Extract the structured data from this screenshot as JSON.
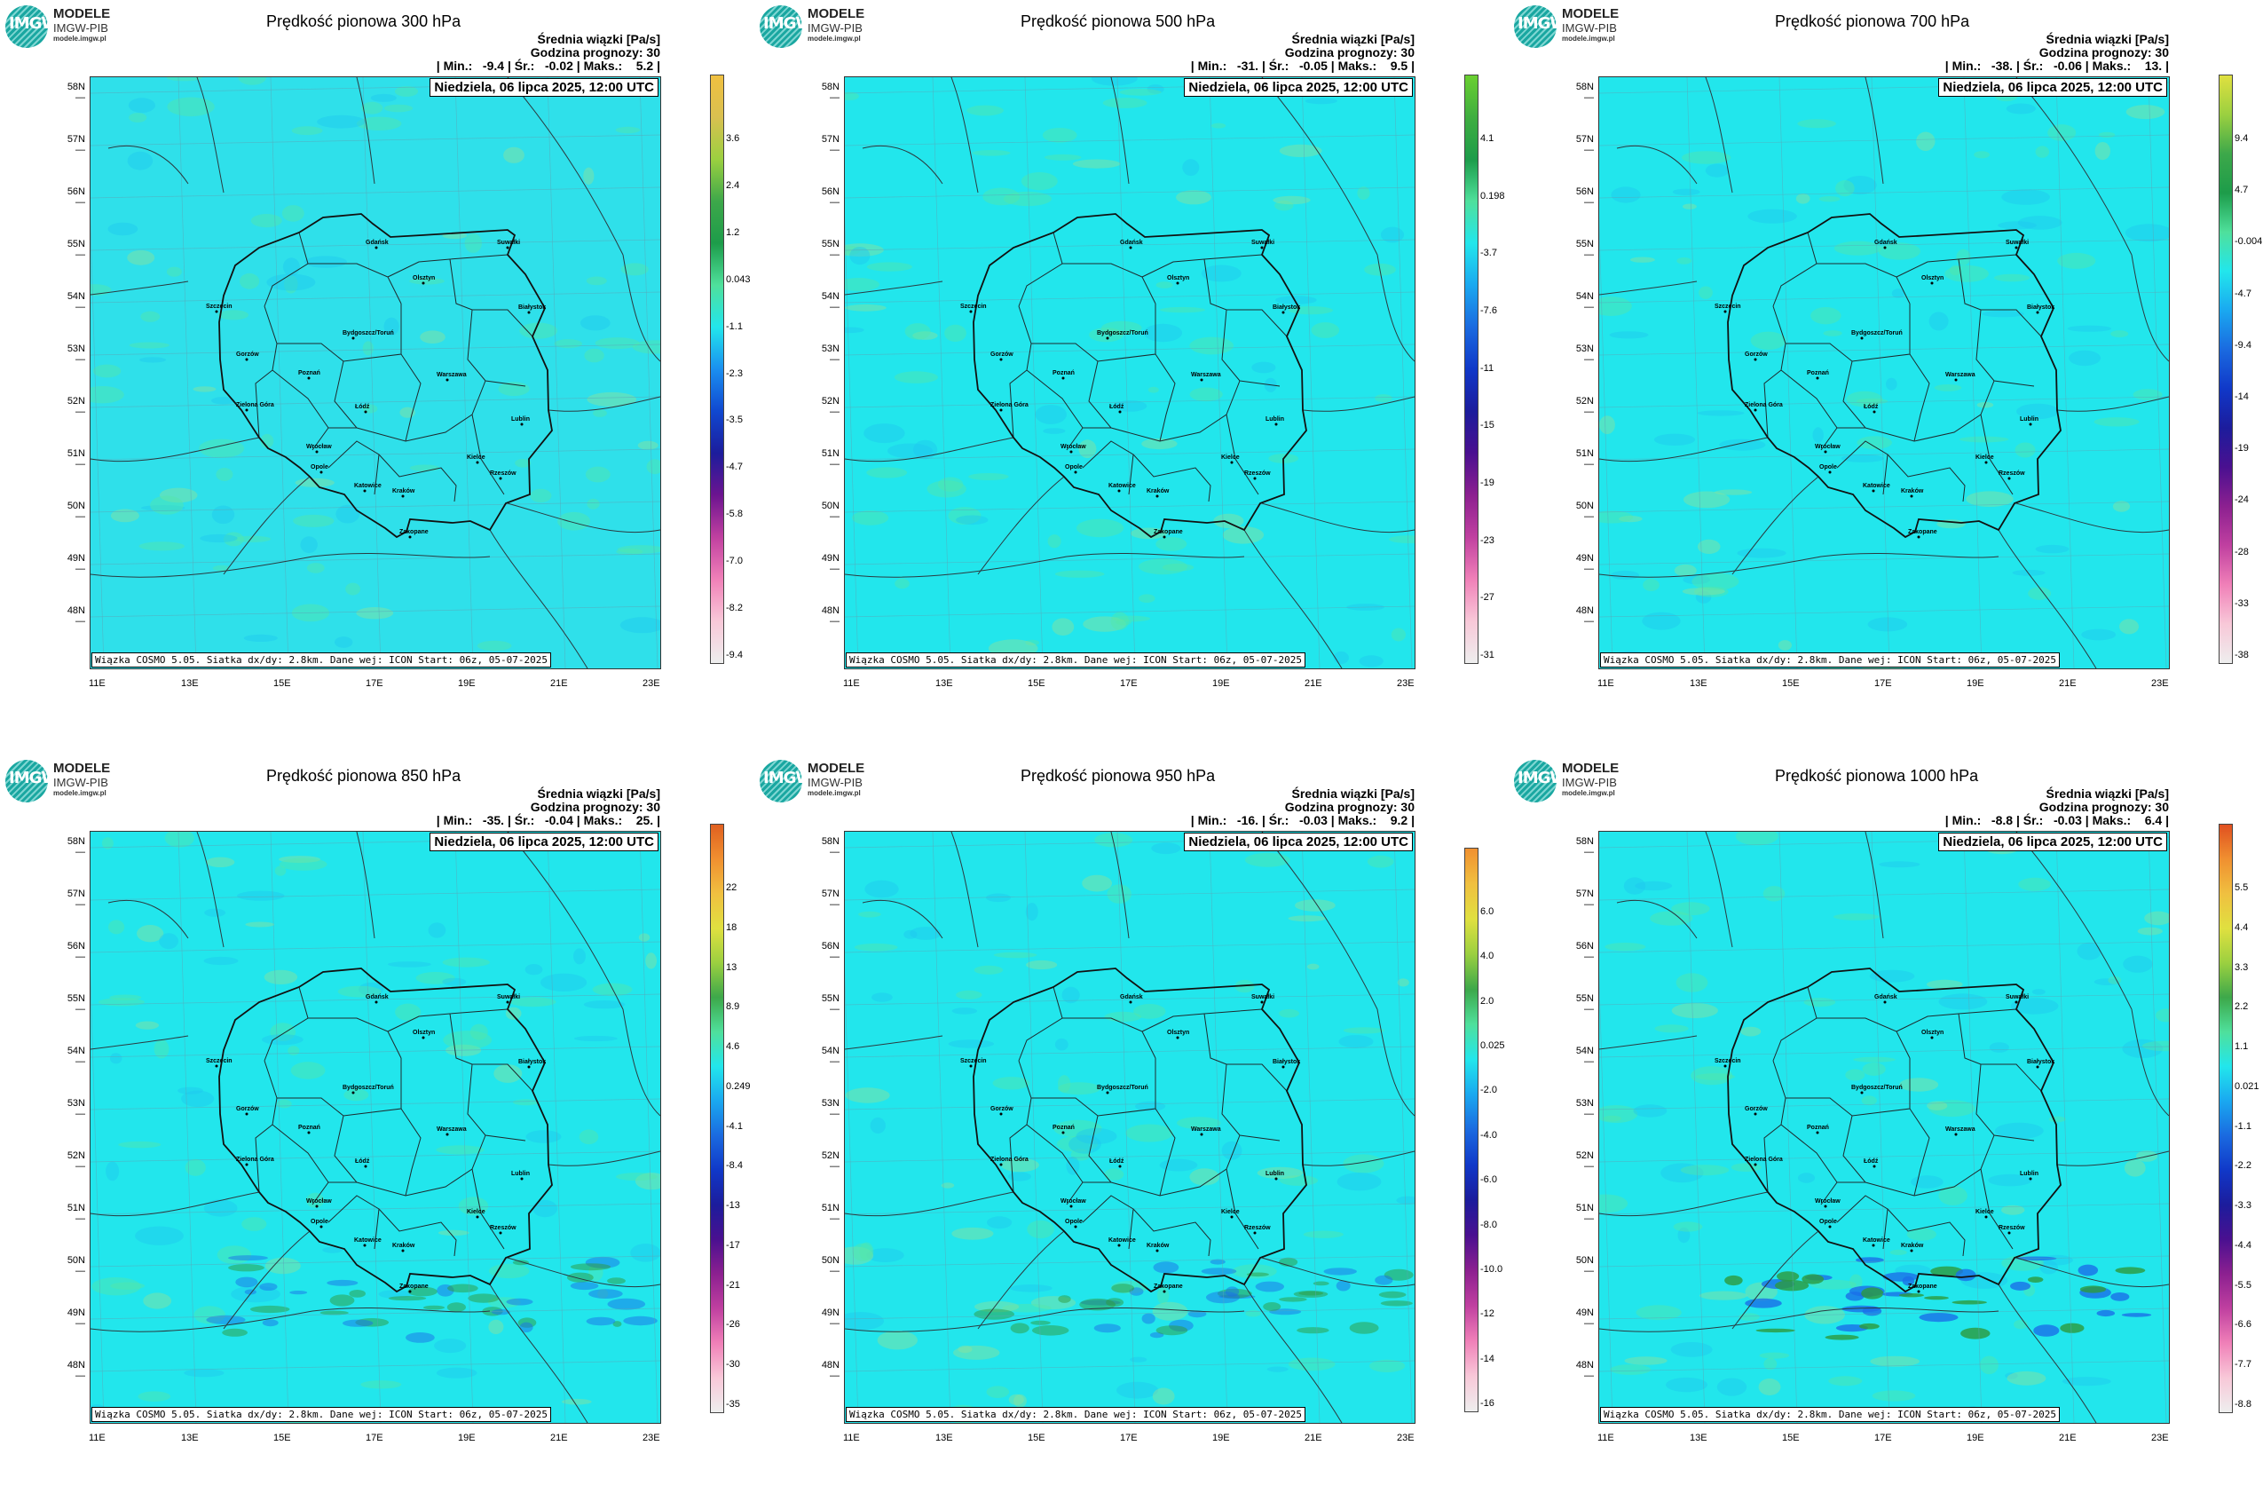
{
  "brand": {
    "line1": "MODELE",
    "line2": "IMGW-PIB",
    "line3": "modele.imgw.pl",
    "mark": "IMGW"
  },
  "common": {
    "subtitle": "Średnia wiązki [Pa/s]",
    "forecast_hour": "Godzina prognozy: 30",
    "date": "Niedziela, 06 lipca 2025, 12:00 UTC",
    "credit": "Wiązka COSMO 5.05. Siatka dx/dy: 2.8km. Dane wej: ICON Start: 06z, 05-07-2025",
    "lat_labels": [
      "58N",
      "57N",
      "56N",
      "55N",
      "54N",
      "53N",
      "52N",
      "51N",
      "50N",
      "49N",
      "48N"
    ],
    "lon_labels": [
      "11E",
      "13E",
      "15E",
      "17E",
      "19E",
      "21E",
      "23E"
    ]
  },
  "chart_data": [
    {
      "type": "heatmap",
      "title": "Prędkość pionowa 300 hPa",
      "stats": "| Min.:   -9.4 | Śr.:   -0.02 | Maks.:    5.2 |",
      "colorbar_ticks": [
        "3.6",
        "2.4",
        "1.2",
        "0.043",
        "-1.1",
        "-2.3",
        "-3.5",
        "-4.7",
        "-5.8",
        "-7.0",
        "-8.2",
        "-9.4"
      ],
      "min": -9.4,
      "mean": -0.02,
      "max": 5.2
    },
    {
      "type": "heatmap",
      "title": "Prędkość pionowa 500 hPa",
      "stats": "| Min.:   -31. | Śr.:   -0.05 | Maks.:    9.5 |",
      "colorbar_ticks": [
        "4.1",
        "0.198",
        "-3.7",
        "-7.6",
        "-11",
        "-15",
        "-19",
        "-23",
        "-27",
        "-31"
      ],
      "min": -31,
      "mean": -0.05,
      "max": 9.5
    },
    {
      "type": "heatmap",
      "title": "Prędkość pionowa 700 hPa",
      "stats": "| Min.:   -38. | Śr.:   -0.06 | Maks.:    13. |",
      "colorbar_ticks": [
        "9.4",
        "4.7",
        "-0.004",
        "-4.7",
        "-9.4",
        "-14",
        "-19",
        "-24",
        "-28",
        "-33",
        "-38"
      ],
      "min": -38,
      "mean": -0.06,
      "max": 13
    },
    {
      "type": "heatmap",
      "title": "Prędkość pionowa 850 hPa",
      "stats": "| Min.:   -35. | Śr.:   -0.04 | Maks.:    25. |",
      "colorbar_ticks": [
        "22",
        "18",
        "13",
        "8.9",
        "4.6",
        "0.249",
        "-4.1",
        "-8.4",
        "-13",
        "-17",
        "-21",
        "-26",
        "-30",
        "-35"
      ],
      "min": -35,
      "mean": -0.04,
      "max": 25
    },
    {
      "type": "heatmap",
      "title": "Prędkość pionowa 950 hPa",
      "stats": "| Min.:   -16. | Śr.:   -0.03 | Maks.:    9.2 |",
      "colorbar_ticks": [
        "6.0",
        "4.0",
        "2.0",
        "0.025",
        "-2.0",
        "-4.0",
        "-6.0",
        "-8.0",
        "-10.0",
        "-12",
        "-14",
        "-16"
      ],
      "min": -16,
      "mean": -0.03,
      "max": 9.2
    },
    {
      "type": "heatmap",
      "title": "Prędkość pionowa 1000 hPa",
      "stats": "| Min.:   -8.8 | Śr.:   -0.03 | Maks.:    6.4 |",
      "colorbar_ticks": [
        "5.5",
        "4.4",
        "3.3",
        "2.2",
        "1.1",
        "0.021",
        "-1.1",
        "-2.2",
        "-3.3",
        "-4.4",
        "-5.5",
        "-6.6",
        "-7.7",
        "-8.8"
      ],
      "min": -8.8,
      "mean": -0.03,
      "max": 6.4
    }
  ],
  "cities": [
    "Gdańsk",
    "Suwałki",
    "Olsztyn",
    "Białystok",
    "Szczecin",
    "Bydgoszcz/Toruń",
    "Gorzów",
    "Poznań",
    "Warszawa",
    "Zielona Góra",
    "Łódź",
    "Lublin",
    "Wrocław",
    "Kielce",
    "Opole",
    "Katowice",
    "Kraków",
    "Rzeszów",
    "Zakopane"
  ]
}
